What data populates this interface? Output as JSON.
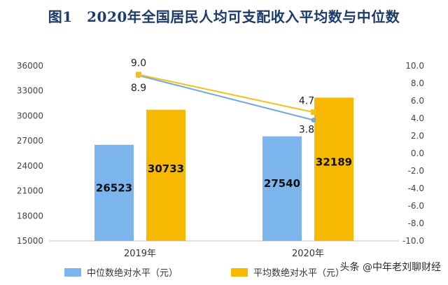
{
  "title": "图1　2020年全国居民人均可支配收入平均数与中位数",
  "watermark": "头条 @中年老刘聊财经",
  "chart_data": {
    "type": "bar",
    "categories": [
      "2019年",
      "2020年"
    ],
    "series": [
      {
        "name": "中位数绝对水平（元）",
        "values": [
          26523,
          27540
        ],
        "color": "#7cb4ee",
        "axis": "left"
      },
      {
        "name": "平均数绝对水平（元）",
        "values": [
          30733,
          32189
        ],
        "color": "#f6b800",
        "axis": "left"
      }
    ],
    "lines": [
      {
        "values": [
          8.9,
          3.8
        ],
        "color": "#74a9d8",
        "axis": "right"
      },
      {
        "values": [
          9.0,
          4.7
        ],
        "color": "#f4c020",
        "axis": "right"
      }
    ],
    "y_left": {
      "min": 15000,
      "max": 36000,
      "step": 3000,
      "ticks": [
        "15000",
        "18000",
        "21000",
        "24000",
        "27000",
        "30000",
        "33000",
        "36000"
      ]
    },
    "y_right": {
      "min": -10.0,
      "max": 10.0,
      "step": 2.0,
      "ticks": [
        "-10.0",
        "-8.0",
        "-6.0",
        "-4.0",
        "-2.0",
        "0.0",
        "2.0",
        "4.0",
        "6.0",
        "8.0",
        "10.0"
      ]
    },
    "legend_placement": "bottom",
    "grid": false
  }
}
